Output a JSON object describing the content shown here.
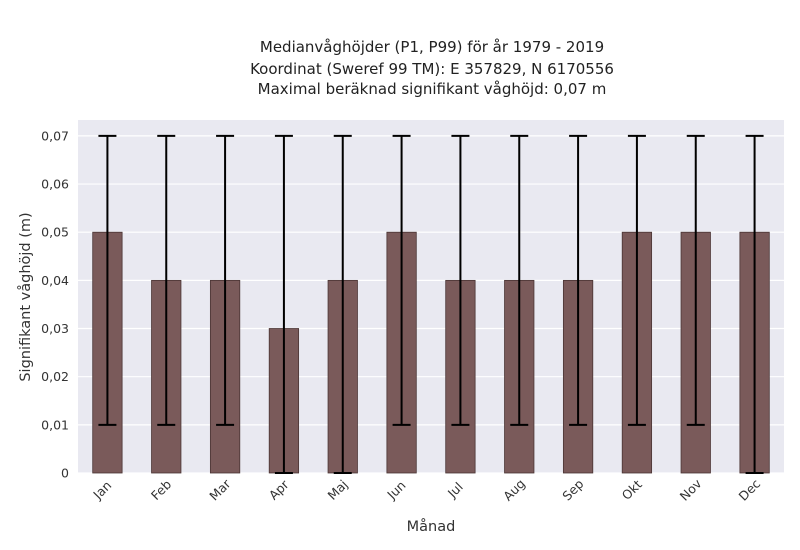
{
  "chart_data": {
    "type": "bar",
    "title_lines": [
      "Medianvåghöjder (P1, P99) för år 1979 - 2019",
      "Koordinat (Sweref 99 TM): E 357829, N 6170556",
      "Maximal beräknad signifikant våghöjd: 0,07 m"
    ],
    "xlabel": "Månad",
    "ylabel": "Signifikant våghöjd (m)",
    "categories": [
      "Jan",
      "Feb",
      "Mar",
      "Apr",
      "Maj",
      "Jun",
      "Jul",
      "Aug",
      "Sep",
      "Okt",
      "Nov",
      "Dec"
    ],
    "values": [
      0.05,
      0.04,
      0.04,
      0.03,
      0.04,
      0.05,
      0.04,
      0.04,
      0.04,
      0.05,
      0.05,
      0.05
    ],
    "error_low": [
      0.01,
      0.01,
      0.01,
      0.0,
      0.0,
      0.01,
      0.01,
      0.01,
      0.01,
      0.01,
      0.01,
      0.0
    ],
    "error_high": [
      0.07,
      0.07,
      0.07,
      0.07,
      0.07,
      0.07,
      0.07,
      0.07,
      0.07,
      0.07,
      0.07,
      0.07
    ],
    "ylim": [
      0,
      0.0733
    ],
    "yticks": [
      0,
      0.01,
      0.02,
      0.03,
      0.04,
      0.05,
      0.06,
      0.07
    ],
    "ytick_labels": [
      "0",
      "0,01",
      "0,02",
      "0,03",
      "0,04",
      "0,05",
      "0,06",
      "0,07"
    ],
    "grid": true,
    "legend": "none",
    "colors": {
      "bar": "#7a5a5a",
      "bar_edge": "#4a3434",
      "error_bar": "#000000",
      "plot_background": "#e9e9f1",
      "grid": "#ffffff"
    }
  }
}
